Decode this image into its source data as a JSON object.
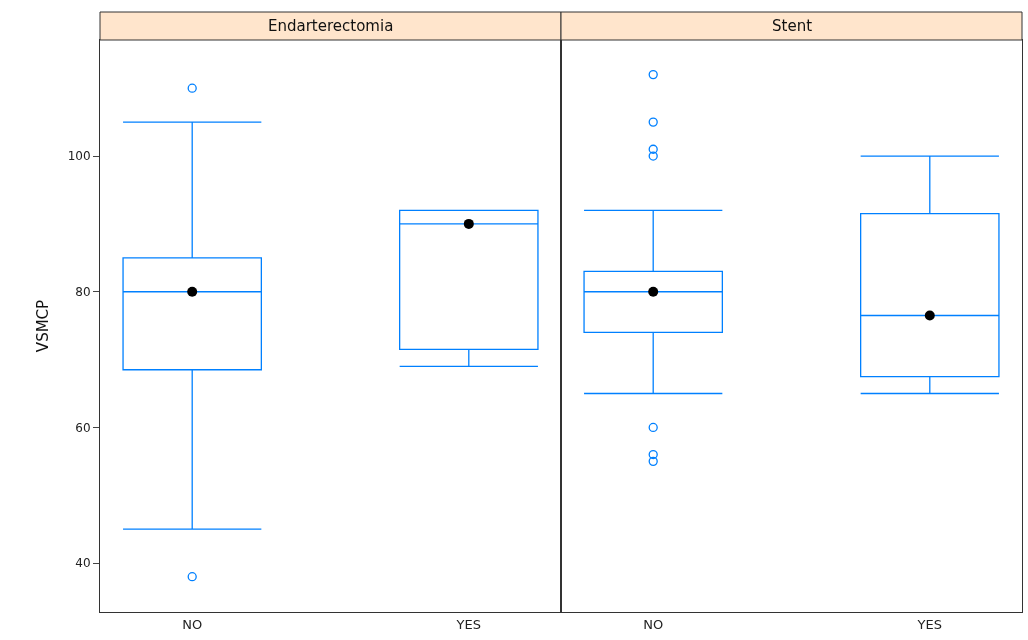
{
  "chart_data": [
    {
      "type": "box",
      "title": "Endarterectomia",
      "ylabel": "VSMCP",
      "categories": [
        "NO",
        "YES"
      ],
      "color": "#0080ff",
      "ylim": [
        32.8,
        117.1
      ],
      "yticks": [
        40,
        60,
        80,
        100
      ],
      "boxes": [
        {
          "low": 45,
          "q1": 68.5,
          "median": 80,
          "q3": 85,
          "high": 105,
          "outliers": [
            110,
            38
          ]
        },
        {
          "low": 69,
          "q1": 71.5,
          "median": 90,
          "q3": 92,
          "high": 92
        }
      ],
      "series": [
        {
          "type": "scatter",
          "color": "#000000",
          "x": [
            "NO",
            "YES"
          ],
          "values": [
            80,
            90
          ]
        }
      ]
    },
    {
      "type": "box",
      "title": "Stent",
      "categories": [
        "NO",
        "YES"
      ],
      "color": "#0080ff",
      "ylim": [
        32.8,
        117.1
      ],
      "yticks": [
        40,
        60,
        80,
        100
      ],
      "tick_labels": "x",
      "boxes": [
        {
          "low": 65,
          "q1": 74,
          "median": 80,
          "q3": 83,
          "high": 92,
          "outliers": [
            112,
            105,
            101,
            100,
            60,
            56,
            55
          ]
        },
        {
          "low": 65,
          "q1": 67.5,
          "median": 76.5,
          "q3": 91.5,
          "high": 100
        }
      ],
      "series": [
        {
          "type": "scatter",
          "color": "#000000",
          "x": [
            "NO",
            "YES"
          ],
          "values": [
            80,
            76.5
          ]
        }
      ]
    }
  ]
}
